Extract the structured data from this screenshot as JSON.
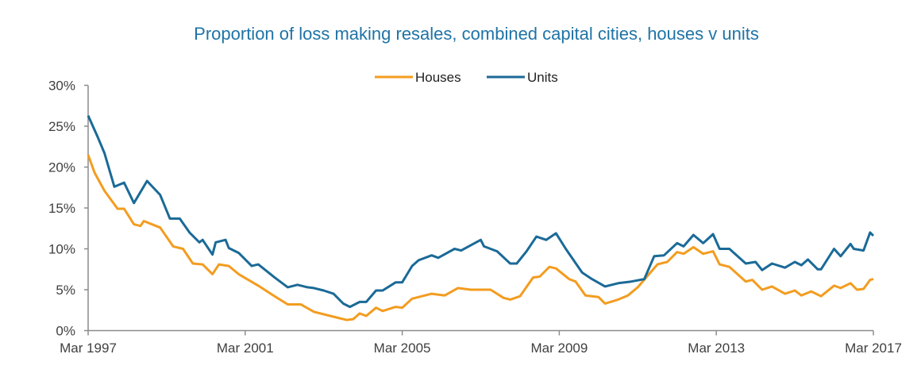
{
  "chart_data": {
    "type": "line",
    "title": "Proportion of loss making resales, combined capital cities, houses v units",
    "xlabel": "",
    "ylabel": "",
    "x_range": [
      "1997-03",
      "2017-03"
    ],
    "x_ticks": [
      "Mar 1997",
      "Mar 2001",
      "Mar 2005",
      "Mar 2009",
      "Mar 2013",
      "Mar 2017"
    ],
    "ylim": [
      0,
      30
    ],
    "y_ticks": [
      "0%",
      "5%",
      "10%",
      "15%",
      "20%",
      "25%",
      "30%"
    ],
    "grid": false,
    "legend_placement": "top-center",
    "series": [
      {
        "name": "Houses",
        "color": "#f39c1f",
        "points": [
          [
            "1997-03",
            21.5
          ],
          [
            "1997-05",
            19.3
          ],
          [
            "1997-08",
            17.1
          ],
          [
            "1997-12",
            14.9
          ],
          [
            "1998-02",
            14.9
          ],
          [
            "1998-05",
            13.0
          ],
          [
            "1998-07",
            12.8
          ],
          [
            "1998-08",
            13.4
          ],
          [
            "1999-01",
            12.6
          ],
          [
            "1999-05",
            10.3
          ],
          [
            "1999-08",
            10.0
          ],
          [
            "1999-11",
            8.2
          ],
          [
            "2000-02",
            8.1
          ],
          [
            "2000-05",
            6.9
          ],
          [
            "2000-07",
            8.1
          ],
          [
            "2000-10",
            7.9
          ],
          [
            "2001-01",
            6.9
          ],
          [
            "2001-07",
            5.5
          ],
          [
            "2001-12",
            4.2
          ],
          [
            "2002-04",
            3.2
          ],
          [
            "2002-08",
            3.2
          ],
          [
            "2002-12",
            2.3
          ],
          [
            "2003-05",
            1.8
          ],
          [
            "2003-10",
            1.3
          ],
          [
            "2003-12",
            1.4
          ],
          [
            "2004-02",
            2.1
          ],
          [
            "2004-04",
            1.8
          ],
          [
            "2004-07",
            2.8
          ],
          [
            "2004-09",
            2.4
          ],
          [
            "2005-01",
            2.9
          ],
          [
            "2005-03",
            2.8
          ],
          [
            "2005-06",
            3.9
          ],
          [
            "2005-12",
            4.5
          ],
          [
            "2006-04",
            4.3
          ],
          [
            "2006-08",
            5.2
          ],
          [
            "2006-12",
            5.0
          ],
          [
            "2007-06",
            5.0
          ],
          [
            "2007-10",
            4.0
          ],
          [
            "2007-12",
            3.8
          ],
          [
            "2008-03",
            4.2
          ],
          [
            "2008-07",
            6.5
          ],
          [
            "2008-09",
            6.6
          ],
          [
            "2008-12",
            7.8
          ],
          [
            "2009-02",
            7.6
          ],
          [
            "2009-06",
            6.3
          ],
          [
            "2009-08",
            6.0
          ],
          [
            "2009-11",
            4.3
          ],
          [
            "2010-03",
            4.1
          ],
          [
            "2010-05",
            3.3
          ],
          [
            "2010-09",
            3.8
          ],
          [
            "2010-12",
            4.3
          ],
          [
            "2011-03",
            5.3
          ],
          [
            "2011-09",
            8.1
          ],
          [
            "2011-12",
            8.4
          ],
          [
            "2012-03",
            9.6
          ],
          [
            "2012-05",
            9.4
          ],
          [
            "2012-08",
            10.2
          ],
          [
            "2012-11",
            9.4
          ],
          [
            "2013-02",
            9.7
          ],
          [
            "2013-04",
            8.1
          ],
          [
            "2013-07",
            7.8
          ],
          [
            "2013-12",
            6.0
          ],
          [
            "2014-02",
            6.2
          ],
          [
            "2014-05",
            5.0
          ],
          [
            "2014-08",
            5.4
          ],
          [
            "2014-12",
            4.5
          ],
          [
            "2015-03",
            4.9
          ],
          [
            "2015-05",
            4.3
          ],
          [
            "2015-08",
            4.8
          ],
          [
            "2015-11",
            4.2
          ],
          [
            "2016-03",
            5.5
          ],
          [
            "2016-05",
            5.2
          ],
          [
            "2016-08",
            5.8
          ],
          [
            "2016-10",
            5.0
          ],
          [
            "2016-12",
            5.1
          ],
          [
            "2017-02",
            6.2
          ],
          [
            "2017-03",
            6.3
          ]
        ]
      },
      {
        "name": "Units",
        "color": "#1a6a97",
        "points": [
          [
            "1997-03",
            26.3
          ],
          [
            "1997-06",
            23.6
          ],
          [
            "1997-08",
            21.7
          ],
          [
            "1997-11",
            17.6
          ],
          [
            "1998-02",
            18.1
          ],
          [
            "1998-05",
            15.6
          ],
          [
            "1998-09",
            18.3
          ],
          [
            "1999-01",
            16.6
          ],
          [
            "1999-04",
            13.7
          ],
          [
            "1999-07",
            13.7
          ],
          [
            "1999-10",
            12.0
          ],
          [
            "2000-01",
            10.8
          ],
          [
            "2000-02",
            11.1
          ],
          [
            "2000-05",
            9.3
          ],
          [
            "2000-06",
            10.8
          ],
          [
            "2000-09",
            11.1
          ],
          [
            "2000-10",
            10.1
          ],
          [
            "2001-01",
            9.5
          ],
          [
            "2001-05",
            7.9
          ],
          [
            "2001-07",
            8.1
          ],
          [
            "2001-12",
            6.5
          ],
          [
            "2002-04",
            5.3
          ],
          [
            "2002-07",
            5.6
          ],
          [
            "2002-10",
            5.3
          ],
          [
            "2002-12",
            5.2
          ],
          [
            "2003-03",
            4.9
          ],
          [
            "2003-06",
            4.5
          ],
          [
            "2003-09",
            3.3
          ],
          [
            "2003-11",
            2.9
          ],
          [
            "2004-02",
            3.5
          ],
          [
            "2004-04",
            3.5
          ],
          [
            "2004-07",
            4.9
          ],
          [
            "2004-09",
            4.9
          ],
          [
            "2005-01",
            5.9
          ],
          [
            "2005-03",
            5.9
          ],
          [
            "2005-06",
            7.9
          ],
          [
            "2005-08",
            8.6
          ],
          [
            "2005-12",
            9.2
          ],
          [
            "2006-02",
            8.9
          ],
          [
            "2006-07",
            10.0
          ],
          [
            "2006-09",
            9.8
          ],
          [
            "2007-03",
            11.1
          ],
          [
            "2007-04",
            10.3
          ],
          [
            "2007-08",
            9.7
          ],
          [
            "2007-12",
            8.2
          ],
          [
            "2008-02",
            8.2
          ],
          [
            "2008-05",
            9.7
          ],
          [
            "2008-08",
            11.5
          ],
          [
            "2008-11",
            11.1
          ],
          [
            "2009-02",
            11.9
          ],
          [
            "2009-05",
            10.0
          ],
          [
            "2009-10",
            7.1
          ],
          [
            "2010-01",
            6.3
          ],
          [
            "2010-05",
            5.4
          ],
          [
            "2010-09",
            5.8
          ],
          [
            "2011-01",
            6.0
          ],
          [
            "2011-05",
            6.3
          ],
          [
            "2011-08",
            9.1
          ],
          [
            "2011-11",
            9.2
          ],
          [
            "2012-03",
            10.7
          ],
          [
            "2012-05",
            10.3
          ],
          [
            "2012-08",
            11.7
          ],
          [
            "2012-11",
            10.7
          ],
          [
            "2013-02",
            11.8
          ],
          [
            "2013-04",
            10.0
          ],
          [
            "2013-07",
            10.0
          ],
          [
            "2013-12",
            8.2
          ],
          [
            "2014-03",
            8.4
          ],
          [
            "2014-05",
            7.4
          ],
          [
            "2014-08",
            8.2
          ],
          [
            "2014-12",
            7.7
          ],
          [
            "2015-03",
            8.4
          ],
          [
            "2015-05",
            8.0
          ],
          [
            "2015-07",
            8.7
          ],
          [
            "2015-10",
            7.5
          ],
          [
            "2015-11",
            7.5
          ],
          [
            "2016-03",
            10.0
          ],
          [
            "2016-05",
            9.1
          ],
          [
            "2016-08",
            10.6
          ],
          [
            "2016-09",
            10.0
          ],
          [
            "2016-12",
            9.8
          ],
          [
            "2017-02",
            12.0
          ],
          [
            "2017-03",
            11.6
          ]
        ]
      }
    ]
  }
}
